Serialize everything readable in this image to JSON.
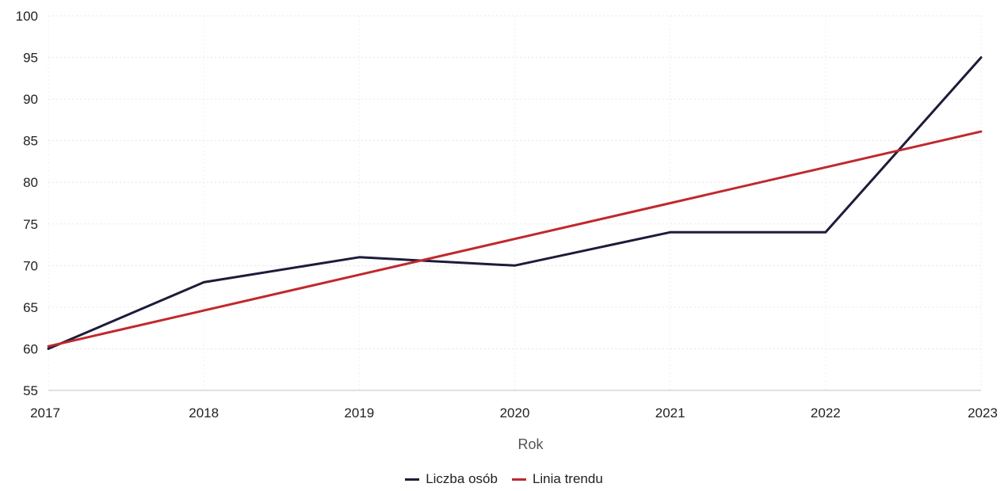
{
  "chart_data": {
    "type": "line",
    "xlabel": "Rok",
    "ylabel": "",
    "x": [
      2017,
      2018,
      2019,
      2020,
      2021,
      2022,
      2023
    ],
    "xlim": [
      2017,
      2023
    ],
    "ylim": [
      55,
      100
    ],
    "yticks": [
      55,
      60,
      65,
      70,
      75,
      80,
      85,
      90,
      95,
      100
    ],
    "grid": true,
    "legend_position": "bottom",
    "series": [
      {
        "name": "Liczba osób",
        "color": "#1c1c3a",
        "values": [
          60,
          68,
          71,
          70,
          74,
          74,
          95
        ]
      },
      {
        "name": "Linia trendu",
        "color": "#c0282d",
        "values": [
          60.3,
          64.6,
          68.9,
          73.2,
          77.5,
          81.8,
          86.1
        ]
      }
    ]
  }
}
